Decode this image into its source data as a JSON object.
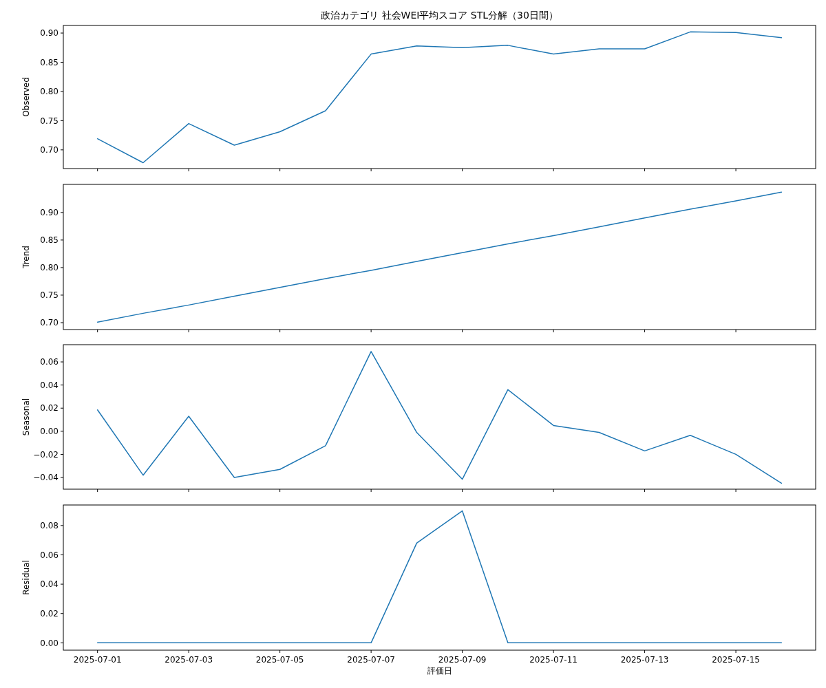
{
  "chart_data": [
    {
      "type": "line",
      "title": "政治カテゴリ 社会WEI平均スコア STL分解（30日間）",
      "ylabel": "Observed",
      "tick_labels": "y",
      "x": [
        "2025-07-01",
        "2025-07-02",
        "2025-07-03",
        "2025-07-04",
        "2025-07-05",
        "2025-07-06",
        "2025-07-07",
        "2025-07-08",
        "2025-07-09",
        "2025-07-10",
        "2025-07-11",
        "2025-07-12",
        "2025-07-13",
        "2025-07-14",
        "2025-07-15",
        "2025-07-16"
      ],
      "color": "#1f77b4",
      "values": [
        0.719,
        0.678,
        0.745,
        0.708,
        0.731,
        0.767,
        0.864,
        0.878,
        0.875,
        0.879,
        0.864,
        0.873,
        0.873,
        0.902,
        0.901,
        0.892
      ],
      "xlim": [
        "2025-06-30T06:00",
        "2025-07-16T18:00"
      ],
      "xticks": [
        "2025-07-01",
        "2025-07-03",
        "2025-07-05",
        "2025-07-07",
        "2025-07-09",
        "2025-07-11",
        "2025-07-13",
        "2025-07-15"
      ],
      "ylim": [
        0.668,
        0.913
      ],
      "yticks": [
        {
          "value": 0.7,
          "label": "0.70"
        },
        {
          "value": 0.75,
          "label": "0.75"
        },
        {
          "value": 0.8,
          "label": "0.80"
        },
        {
          "value": 0.85,
          "label": "0.85"
        },
        {
          "value": 0.9,
          "label": "0.90"
        }
      ]
    },
    {
      "type": "line",
      "ylabel": "Trend",
      "tick_labels": "y",
      "x": [
        "2025-07-01",
        "2025-07-02",
        "2025-07-03",
        "2025-07-04",
        "2025-07-05",
        "2025-07-06",
        "2025-07-07",
        "2025-07-08",
        "2025-07-09",
        "2025-07-10",
        "2025-07-11",
        "2025-07-12",
        "2025-07-13",
        "2025-07-14",
        "2025-07-15",
        "2025-07-16"
      ],
      "color": "#1f77b4",
      "values": [
        0.701,
        0.717,
        0.732,
        0.748,
        0.764,
        0.78,
        0.795,
        0.811,
        0.827,
        0.843,
        0.858,
        0.874,
        0.89,
        0.906,
        0.921,
        0.937
      ],
      "xlim": [
        "2025-06-30T06:00",
        "2025-07-16T18:00"
      ],
      "xticks": [
        "2025-07-01",
        "2025-07-03",
        "2025-07-05",
        "2025-07-07",
        "2025-07-09",
        "2025-07-11",
        "2025-07-13",
        "2025-07-15"
      ],
      "ylim": [
        0.6875,
        0.951
      ],
      "yticks": [
        {
          "value": 0.7,
          "label": "0.70"
        },
        {
          "value": 0.75,
          "label": "0.75"
        },
        {
          "value": 0.8,
          "label": "0.80"
        },
        {
          "value": 0.85,
          "label": "0.85"
        },
        {
          "value": 0.9,
          "label": "0.90"
        }
      ]
    },
    {
      "type": "line",
      "ylabel": "Seasonal",
      "tick_labels": "y",
      "x": [
        "2025-07-01",
        "2025-07-02",
        "2025-07-03",
        "2025-07-04",
        "2025-07-05",
        "2025-07-06",
        "2025-07-07",
        "2025-07-08",
        "2025-07-09",
        "2025-07-10",
        "2025-07-11",
        "2025-07-12",
        "2025-07-13",
        "2025-07-14",
        "2025-07-15",
        "2025-07-16"
      ],
      "color": "#1f77b4",
      "values": [
        0.0185,
        -0.038,
        0.013,
        -0.04,
        -0.033,
        -0.0125,
        0.069,
        -0.001,
        -0.0415,
        0.036,
        0.005,
        -0.001,
        -0.017,
        -0.0035,
        -0.02,
        -0.045
      ],
      "xlim": [
        "2025-06-30T06:00",
        "2025-07-16T18:00"
      ],
      "xticks": [
        "2025-07-01",
        "2025-07-03",
        "2025-07-05",
        "2025-07-07",
        "2025-07-09",
        "2025-07-11",
        "2025-07-13",
        "2025-07-15"
      ],
      "ylim": [
        -0.0501,
        0.0749
      ],
      "yticks": [
        {
          "value": -0.04,
          "label": "−0.04"
        },
        {
          "value": -0.02,
          "label": "−0.02"
        },
        {
          "value": 0,
          "label": "0.00"
        },
        {
          "value": 0.02,
          "label": "0.02"
        },
        {
          "value": 0.04,
          "label": "0.04"
        },
        {
          "value": 0.06,
          "label": "0.06"
        }
      ]
    },
    {
      "type": "line",
      "ylabel": "Residual",
      "xlabel": "評価日",
      "x": [
        "2025-07-01",
        "2025-07-02",
        "2025-07-03",
        "2025-07-04",
        "2025-07-05",
        "2025-07-06",
        "2025-07-07",
        "2025-07-08",
        "2025-07-09",
        "2025-07-10",
        "2025-07-11",
        "2025-07-12",
        "2025-07-13",
        "2025-07-14",
        "2025-07-15",
        "2025-07-16"
      ],
      "color": "#1f77b4",
      "values": [
        0,
        0,
        0,
        0,
        0,
        0,
        0,
        0.068,
        0.09,
        0,
        0,
        0,
        0,
        0,
        0,
        0
      ],
      "xlim": [
        "2025-06-30T06:00",
        "2025-07-16T18:00"
      ],
      "xticks": [
        "2025-07-01",
        "2025-07-03",
        "2025-07-05",
        "2025-07-07",
        "2025-07-09",
        "2025-07-11",
        "2025-07-13",
        "2025-07-15"
      ],
      "ylim": [
        -0.005,
        0.094
      ],
      "yticks": [
        {
          "value": 0,
          "label": "0.00"
        },
        {
          "value": 0.02,
          "label": "0.02"
        },
        {
          "value": 0.04,
          "label": "0.04"
        },
        {
          "value": 0.06,
          "label": "0.06"
        },
        {
          "value": 0.08,
          "label": "0.08"
        }
      ]
    }
  ]
}
